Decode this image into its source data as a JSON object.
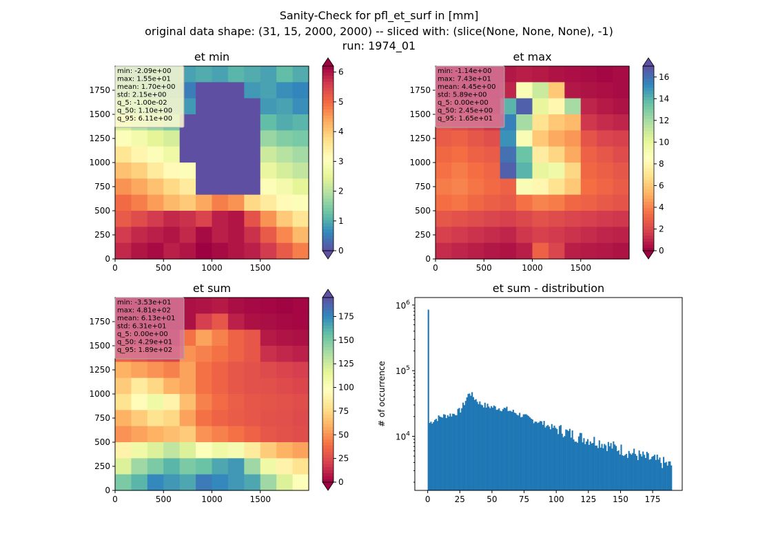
{
  "figure": {
    "title_line1": "Sanity-Check for pfl_et_surf in [mm]",
    "title_line2": "original data shape: (31, 15, 2000, 2000) -- sliced with: (slice(None, None, None), -1)",
    "title_line3": "run: 1974_01"
  },
  "colors": {
    "spectral": [
      "#9e0142",
      "#d53e4f",
      "#f46d43",
      "#fdae61",
      "#fee08b",
      "#ffffbf",
      "#e6f598",
      "#abdda4",
      "#66c2a5",
      "#3288bd",
      "#5e4fa2"
    ],
    "histogram_bar": "#1f77b4"
  },
  "chart_data": [
    {
      "type": "heatmap",
      "title": "et min",
      "colormap": "Spectral_r",
      "colorbar_range": [
        0,
        6.2
      ],
      "colorbar_ticks": [
        0,
        1,
        2,
        3,
        4,
        5,
        6
      ],
      "xlim": [
        0,
        2000
      ],
      "ylim": [
        0,
        2000
      ],
      "xticks": [
        0,
        500,
        1000,
        1500
      ],
      "yticks": [
        0,
        250,
        500,
        750,
        1000,
        1250,
        1500,
        1750
      ],
      "stats": {
        "min": "-2.09e+00",
        "max": "1.55e+01",
        "mean": "1.70e+00",
        "std": "2.15e+00",
        "q_5": "-1.00e-02",
        "q_50": "1.10e+00",
        "q_95": "6.11e+00"
      },
      "stats_box_color": "#fffbd0",
      "rows": [
        [
          0.7,
          0.6,
          0.8,
          0.7,
          0.9,
          1.0,
          0.9,
          1.1,
          1.0,
          0.9,
          1.2,
          1.0
        ],
        [
          0.9,
          0.8,
          0.7,
          0.6,
          0.5,
          -1,
          -1,
          -1,
          0.8,
          0.9,
          0.7,
          0.6
        ],
        [
          1.5,
          1.3,
          1.1,
          0.9,
          0.8,
          -1,
          -1,
          -1,
          -1,
          0.8,
          0.9,
          0.7
        ],
        [
          2.3,
          2.0,
          1.7,
          1.4,
          -1,
          -1,
          -1,
          -1,
          -1,
          1.2,
          1.0,
          1.1
        ],
        [
          3.0,
          2.8,
          2.5,
          2.3,
          -1,
          -1,
          -1,
          -1,
          -1,
          1.7,
          1.5,
          1.4
        ],
        [
          3.6,
          3.3,
          3.0,
          2.7,
          -1,
          -1,
          -1,
          -1,
          -1,
          2.2,
          2.0,
          1.8
        ],
        [
          4.1,
          3.9,
          3.5,
          3.2,
          3.0,
          -1,
          -1,
          -1,
          -1,
          2.6,
          2.3,
          2.1
        ],
        [
          4.6,
          4.4,
          4.1,
          3.8,
          3.5,
          -1,
          -1,
          -1,
          -1,
          3.0,
          2.8,
          2.5
        ],
        [
          5.0,
          4.8,
          4.5,
          4.2,
          4.0,
          4.4,
          4.8,
          4.6,
          3.8,
          3.5,
          3.2,
          3.0
        ],
        [
          5.2,
          5.4,
          5.6,
          5.8,
          5.7,
          5.5,
          5.9,
          6.0,
          5.3,
          4.6,
          4.0,
          3.6
        ],
        [
          5.6,
          5.8,
          5.9,
          6.0,
          5.8,
          6.1,
          5.9,
          6.0,
          5.7,
          5.2,
          4.7,
          4.2
        ],
        [
          5.8,
          6.0,
          6.1,
          5.9,
          6.0,
          6.2,
          6.1,
          6.0,
          5.9,
          5.6,
          5.2,
          4.8
        ]
      ]
    },
    {
      "type": "heatmap",
      "title": "et max",
      "colormap": "Spectral",
      "colorbar_range": [
        0,
        17
      ],
      "colorbar_ticks": [
        0,
        2,
        4,
        6,
        8,
        10,
        12,
        14,
        16
      ],
      "xlim": [
        0,
        2000
      ],
      "ylim": [
        0,
        2000
      ],
      "xticks": [
        0,
        500,
        1000,
        1500
      ],
      "yticks": [
        0,
        250,
        500,
        750,
        1000,
        1250,
        1500,
        1750
      ],
      "stats": {
        "min": "-1.14e+00",
        "max": "7.43e+01",
        "mean": "4.45e+00",
        "std": "5.89e+00",
        "q_5": "0.00e+00",
        "q_50": "2.45e+00",
        "q_95": "1.65e+01"
      },
      "stats_box_color": "#d57896",
      "rows": [
        [
          0.5,
          0.4,
          0.3,
          0.5,
          0.6,
          0.8,
          0.7,
          0.5,
          0.4,
          0.3,
          0.2,
          0.3
        ],
        [
          0.8,
          0.6,
          0.5,
          0.4,
          1.0,
          9.0,
          11.0,
          6.0,
          0.6,
          0.5,
          0.4,
          0.3
        ],
        [
          1.6,
          1.3,
          1.0,
          0.8,
          14.0,
          16.5,
          10.0,
          8.0,
          12.0,
          1.0,
          0.7,
          0.5
        ],
        [
          2.5,
          2.2,
          1.9,
          1.5,
          15.5,
          12.0,
          7.0,
          6.0,
          5.5,
          1.5,
          1.2,
          1.0
        ],
        [
          2.8,
          3.0,
          2.6,
          2.3,
          15.0,
          9.0,
          6.0,
          5.0,
          4.5,
          2.5,
          2.0,
          1.8
        ],
        [
          3.2,
          3.4,
          3.0,
          2.8,
          16.0,
          13.5,
          7.5,
          6.5,
          5.0,
          3.0,
          2.6,
          2.2
        ],
        [
          3.5,
          3.8,
          3.4,
          3.1,
          16.5,
          14.0,
          10.0,
          9.5,
          6.5,
          3.2,
          2.9,
          2.6
        ],
        [
          3.8,
          4.0,
          3.6,
          3.3,
          3.0,
          9.0,
          8.0,
          7.0,
          6.0,
          3.4,
          3.1,
          2.8
        ],
        [
          3.4,
          3.6,
          3.2,
          2.9,
          2.7,
          3.5,
          4.0,
          3.8,
          3.2,
          3.0,
          2.7,
          2.5
        ],
        [
          2.6,
          2.4,
          2.2,
          2.0,
          1.8,
          2.1,
          2.4,
          2.2,
          2.0,
          1.8,
          1.6,
          1.5
        ],
        [
          1.8,
          1.6,
          1.4,
          1.2,
          1.0,
          1.5,
          1.8,
          1.6,
          1.4,
          1.2,
          1.0,
          0.9
        ],
        [
          1.2,
          1.0,
          0.8,
          0.6,
          0.5,
          0.8,
          3.0,
          2.0,
          0.8,
          0.7,
          0.6,
          0.5
        ]
      ]
    },
    {
      "type": "heatmap",
      "title": "et sum",
      "colormap": "Spectral",
      "colorbar_range": [
        0,
        195
      ],
      "colorbar_ticks": [
        0,
        25,
        50,
        75,
        100,
        125,
        150,
        175
      ],
      "xlim": [
        0,
        2000
      ],
      "ylim": [
        0,
        2000
      ],
      "xticks": [
        0,
        500,
        1000,
        1500
      ],
      "yticks": [
        0,
        250,
        500,
        750,
        1000,
        1250,
        1500,
        1750
      ],
      "stats": {
        "min": "-3.53e+01",
        "max": "4.81e+02",
        "mean": "6.13e+01",
        "std": "6.31e+01",
        "q_5": "0.00e+00",
        "q_50": "4.29e+01",
        "q_95": "1.89e+02"
      },
      "stats_box_color": "#d57896",
      "rows": [
        [
          3,
          2,
          4,
          3,
          5,
          6,
          8,
          4,
          3,
          2,
          1,
          2
        ],
        [
          8,
          6,
          5,
          4,
          5,
          20,
          30,
          10,
          5,
          4,
          3,
          2
        ],
        [
          20,
          15,
          12,
          10,
          40,
          55,
          45,
          35,
          30,
          8,
          6,
          5
        ],
        [
          35,
          30,
          25,
          22,
          50,
          45,
          40,
          35,
          30,
          15,
          12,
          10
        ],
        [
          60,
          55,
          50,
          45,
          55,
          40,
          35,
          30,
          28,
          25,
          22,
          20
        ],
        [
          70,
          85,
          75,
          60,
          55,
          40,
          35,
          30,
          28,
          27,
          25,
          23
        ],
        [
          80,
          95,
          110,
          90,
          65,
          45,
          38,
          33,
          30,
          29,
          28,
          26
        ],
        [
          60,
          70,
          80,
          75,
          55,
          40,
          35,
          32,
          30,
          28,
          27,
          25
        ],
        [
          50,
          55,
          60,
          65,
          70,
          50,
          45,
          40,
          35,
          30,
          28,
          26
        ],
        [
          90,
          110,
          120,
          130,
          120,
          100,
          110,
          105,
          85,
          70,
          60,
          55
        ],
        [
          120,
          140,
          150,
          160,
          150,
          155,
          165,
          170,
          140,
          110,
          90,
          80
        ],
        [
          150,
          160,
          175,
          170,
          165,
          180,
          175,
          170,
          165,
          140,
          120,
          100
        ]
      ]
    },
    {
      "type": "bar",
      "title": "et sum - distribution",
      "ylabel": "# of occurrence",
      "yscale": "log",
      "ylim": [
        1500,
        1300000
      ],
      "xlim": [
        -10,
        198
      ],
      "xticks": [
        0,
        25,
        50,
        75,
        100,
        125,
        150,
        175
      ],
      "yticks_major": [
        10000,
        100000,
        1000000
      ],
      "ytick_labels": [
        {
          "base": "10",
          "exp": "4"
        },
        {
          "base": "10",
          "exp": "5"
        },
        {
          "base": "10",
          "exp": "6"
        }
      ],
      "bin_width": 1,
      "spike": {
        "x": 0,
        "y": 850000
      },
      "profile": [
        [
          1,
          16000
        ],
        [
          5,
          18000
        ],
        [
          10,
          20000
        ],
        [
          15,
          21000
        ],
        [
          20,
          22000
        ],
        [
          25,
          25000
        ],
        [
          28,
          32000
        ],
        [
          32,
          47000
        ],
        [
          36,
          38000
        ],
        [
          40,
          32000
        ],
        [
          45,
          29000
        ],
        [
          50,
          28000
        ],
        [
          55,
          27000
        ],
        [
          60,
          26000
        ],
        [
          65,
          24000
        ],
        [
          70,
          22000
        ],
        [
          75,
          20000
        ],
        [
          80,
          18000
        ],
        [
          85,
          17000
        ],
        [
          90,
          15500
        ],
        [
          95,
          14000
        ],
        [
          100,
          13000
        ],
        [
          105,
          12000
        ],
        [
          110,
          11000
        ],
        [
          115,
          10000
        ],
        [
          120,
          9500
        ],
        [
          125,
          9000
        ],
        [
          130,
          8500
        ],
        [
          135,
          8000
        ],
        [
          140,
          7300
        ],
        [
          145,
          6800
        ],
        [
          150,
          6300
        ],
        [
          155,
          5800
        ],
        [
          160,
          5400
        ],
        [
          165,
          5000
        ],
        [
          170,
          4700
        ],
        [
          175,
          4400
        ],
        [
          180,
          4100
        ],
        [
          185,
          3800
        ],
        [
          189,
          3600
        ]
      ]
    }
  ]
}
